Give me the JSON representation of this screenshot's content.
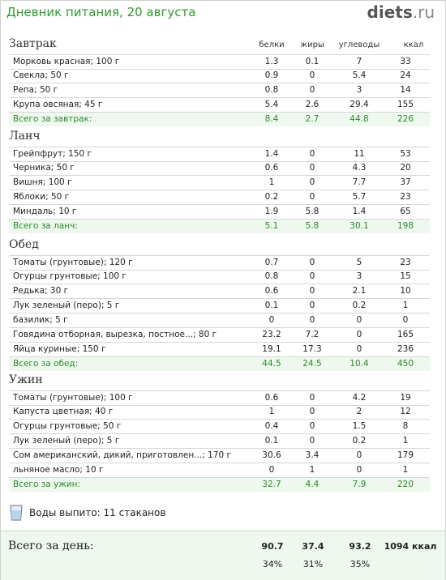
{
  "title": "Дневник питания, 20 августа",
  "logo": {
    "name": "diets",
    "tld": ".ru"
  },
  "columns": {
    "protein": "белки",
    "fat": "жиры",
    "carbs": "углеводы",
    "kcal": "ккал"
  },
  "meals": [
    {
      "name": "Завтрак",
      "items": [
        {
          "name": "Морковь красная; 100 г",
          "p": "1.3",
          "f": "0.1",
          "c": "7",
          "k": "33"
        },
        {
          "name": "Свекла; 50 г",
          "p": "0.9",
          "f": "0",
          "c": "5.4",
          "k": "24"
        },
        {
          "name": "Репа; 50 г",
          "p": "0.8",
          "f": "0",
          "c": "3",
          "k": "14"
        },
        {
          "name": "Крупа овсяная; 45 г",
          "p": "5.4",
          "f": "2.6",
          "c": "29.4",
          "k": "155"
        }
      ],
      "total": {
        "name": "Всего за завтрак:",
        "p": "8.4",
        "f": "2.7",
        "c": "44.8",
        "k": "226"
      }
    },
    {
      "name": "Ланч",
      "items": [
        {
          "name": "Грейпфрут; 150 г",
          "p": "1.4",
          "f": "0",
          "c": "11",
          "k": "53"
        },
        {
          "name": "Черника; 50 г",
          "p": "0.6",
          "f": "0",
          "c": "4.3",
          "k": "20"
        },
        {
          "name": "Вишня; 100 г",
          "p": "1",
          "f": "0",
          "c": "7.7",
          "k": "37"
        },
        {
          "name": "Яблоки; 50 г",
          "p": "0.2",
          "f": "0",
          "c": "5.7",
          "k": "23"
        },
        {
          "name": "Миндаль; 10 г",
          "p": "1.9",
          "f": "5.8",
          "c": "1.4",
          "k": "65"
        }
      ],
      "total": {
        "name": "Всего за ланч:",
        "p": "5.1",
        "f": "5.8",
        "c": "30.1",
        "k": "198"
      }
    },
    {
      "name": "Обед",
      "items": [
        {
          "name": "Томаты (грунтовые); 120 г",
          "p": "0.7",
          "f": "0",
          "c": "5",
          "k": "23"
        },
        {
          "name": "Огурцы грунтовые; 100 г",
          "p": "0.8",
          "f": "0",
          "c": "3",
          "k": "15"
        },
        {
          "name": "Редька; 30 г",
          "p": "0.6",
          "f": "0",
          "c": "2.1",
          "k": "10"
        },
        {
          "name": "Лук зеленый (перо); 5 г",
          "p": "0.1",
          "f": "0",
          "c": "0.2",
          "k": "1"
        },
        {
          "name": "базилик; 5 г",
          "p": "0",
          "f": "0",
          "c": "0",
          "k": "0"
        },
        {
          "name": "Говядина отборная, вырезка, постное...; 80 г",
          "p": "23.2",
          "f": "7.2",
          "c": "0",
          "k": "165"
        },
        {
          "name": "Яйца куриные; 150 г",
          "p": "19.1",
          "f": "17.3",
          "c": "0",
          "k": "236"
        }
      ],
      "total": {
        "name": "Всего за обед:",
        "p": "44.5",
        "f": "24.5",
        "c": "10.4",
        "k": "450"
      }
    },
    {
      "name": "Ужин",
      "items": [
        {
          "name": "Томаты (грунтовые); 100 г",
          "p": "0.6",
          "f": "0",
          "c": "4.2",
          "k": "19"
        },
        {
          "name": "Капуста цветная; 40 г",
          "p": "1",
          "f": "0",
          "c": "2",
          "k": "12"
        },
        {
          "name": "Огурцы грунтовые; 50 г",
          "p": "0.4",
          "f": "0",
          "c": "1.5",
          "k": "8"
        },
        {
          "name": "Лук зеленый (перо); 5 г",
          "p": "0.1",
          "f": "0",
          "c": "0.2",
          "k": "1"
        },
        {
          "name": "Сом американский, дикий, приготовлен...; 170 г",
          "p": "30.6",
          "f": "3.4",
          "c": "0",
          "k": "179"
        },
        {
          "name": "льняное масло; 10 г",
          "p": "0",
          "f": "1",
          "c": "0",
          "k": "1"
        }
      ],
      "total": {
        "name": "Всего за ужин:",
        "p": "32.7",
        "f": "4.4",
        "c": "7.9",
        "k": "220"
      }
    }
  ],
  "water": {
    "icon": "water-glass-icon",
    "text": "Воды выпито: 11 стаканов"
  },
  "day_total": {
    "label": "Всего за день:",
    "p": "90.7",
    "f": "37.4",
    "c": "93.2",
    "k": "1094 ккал",
    "p_pct": "34%",
    "f_pct": "31%",
    "c_pct": "35%"
  },
  "colors": {
    "accent": "#2f9a2f",
    "total_bg": "#eef8ee"
  }
}
